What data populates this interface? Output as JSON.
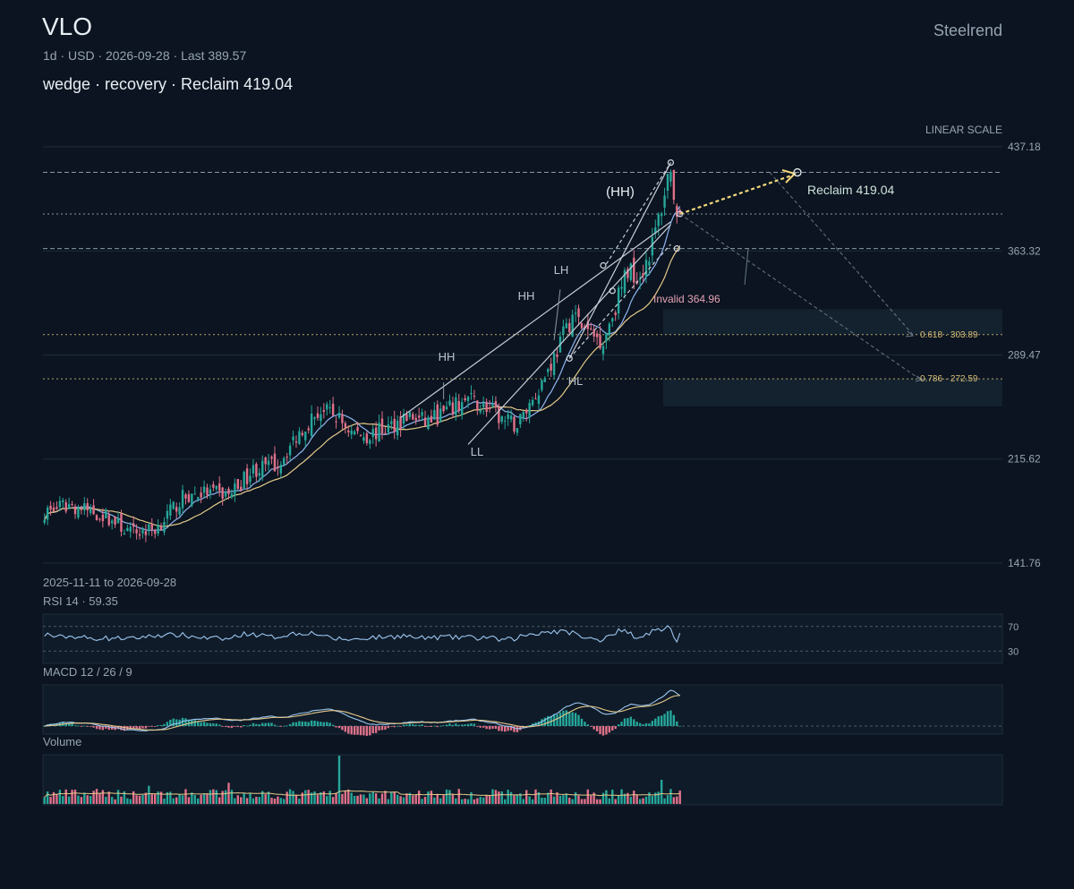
{
  "header": {
    "ticker": "VLO",
    "meta": "1d · USD · 2026-09-28 · Last 389.57",
    "setup": "wedge · recovery · Reclaim 419.04",
    "brand": "Steelrend"
  },
  "colors": {
    "background": "#0b1420",
    "up": "#26a69a",
    "down": "#e0718a",
    "ma_fast": "#8fb4f0",
    "ma_slow": "#e6c98a",
    "target": "#f3d77b",
    "fib": "#e6c98a",
    "line": "#c7ced8"
  },
  "chart_data": {
    "type": "candlestick",
    "symbol": "VLO",
    "interval": "1d",
    "date_range": "2025-11-11 to 2026-09-28",
    "scale": "LINEAR SCALE",
    "y_range": [
      141.76,
      437.18
    ],
    "y_ticks": [
      437.18,
      363.32,
      289.47,
      215.62,
      141.76
    ],
    "last_price": 389.57,
    "bars": 208,
    "anchors": [
      {
        "bar": 0,
        "price": 178
      },
      {
        "bar": 8,
        "price": 183
      },
      {
        "bar": 20,
        "price": 175
      },
      {
        "bar": 28,
        "price": 163
      },
      {
        "bar": 36,
        "price": 166
      },
      {
        "bar": 45,
        "price": 188
      },
      {
        "bar": 52,
        "price": 192
      },
      {
        "bar": 60,
        "price": 190
      },
      {
        "bar": 68,
        "price": 208
      },
      {
        "bar": 76,
        "price": 212
      },
      {
        "bar": 84,
        "price": 238
      },
      {
        "bar": 90,
        "price": 250
      },
      {
        "bar": 95,
        "price": 246
      },
      {
        "bar": 100,
        "price": 235
      },
      {
        "bar": 105,
        "price": 232
      },
      {
        "bar": 112,
        "price": 238
      },
      {
        "bar": 118,
        "price": 246
      },
      {
        "bar": 124,
        "price": 242
      },
      {
        "bar": 130,
        "price": 248
      },
      {
        "bar": 138,
        "price": 258
      },
      {
        "bar": 144,
        "price": 252
      },
      {
        "bar": 150,
        "price": 242
      },
      {
        "bar": 154,
        "price": 240
      },
      {
        "bar": 160,
        "price": 262
      },
      {
        "bar": 166,
        "price": 288
      },
      {
        "bar": 172,
        "price": 318
      },
      {
        "bar": 177,
        "price": 305
      },
      {
        "bar": 182,
        "price": 300
      },
      {
        "bar": 186,
        "price": 325
      },
      {
        "bar": 190,
        "price": 350
      },
      {
        "bar": 194,
        "price": 346
      },
      {
        "bar": 198,
        "price": 368
      },
      {
        "bar": 201,
        "price": 395
      },
      {
        "bar": 203,
        "price": 415
      },
      {
        "bar": 204,
        "price": 425
      },
      {
        "bar": 205,
        "price": 398
      },
      {
        "bar": 206,
        "price": 380
      },
      {
        "bar": 207,
        "price": 389.57
      }
    ],
    "levels": [
      {
        "name": "Reclaim",
        "price": 419.04,
        "style": "dashed"
      },
      {
        "name": "Last",
        "price": 389.57,
        "style": "dotted"
      },
      {
        "name": "Invalid",
        "price": 364.96,
        "style": "dashed"
      },
      {
        "name": "0.618",
        "price": 303.89,
        "style": "dotted"
      },
      {
        "name": "0.786",
        "price": 272.59,
        "style": "dotted"
      }
    ],
    "zones": [
      {
        "from": 303.89,
        "to": 322
      },
      {
        "from": 253,
        "to": 272.59
      }
    ],
    "swing_labels": [
      {
        "text": "LL",
        "bar": 138,
        "price": 218,
        "pos": "below"
      },
      {
        "text": "HH",
        "bar": 131,
        "price": 282,
        "pos": "above"
      },
      {
        "text": "HH",
        "bar": 155,
        "price": 320,
        "pos": "above"
      },
      {
        "text": "LH",
        "bar": 167,
        "price": 342,
        "pos": "above"
      },
      {
        "text": "HL",
        "bar": 171,
        "price": 285,
        "pos": "below"
      },
      {
        "text": "(HH)",
        "bar": 185,
        "price": 428,
        "pos": "above"
      }
    ],
    "annotations": {
      "reclaim": "Reclaim 419.04",
      "invalid": "Invalid 364.96",
      "fib_618": "0.618 · 303.89",
      "fib_786": "0.786 · 272.59",
      "scale_label": "LINEAR SCALE"
    },
    "rsi": {
      "label": "RSI 14 · 59.35",
      "value": 59.35,
      "levels": [
        70,
        30
      ]
    },
    "macd": {
      "label": "MACD 12 / 26 / 9"
    },
    "volume": {
      "label": "Volume"
    }
  }
}
